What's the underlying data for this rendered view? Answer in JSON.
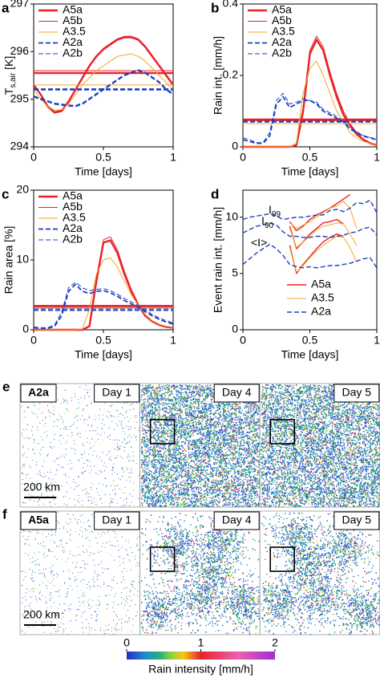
{
  "chart_data": [
    {
      "type": "line",
      "panel_label": "a",
      "xlabel": "Time [days]",
      "ylabel": {
        "text": "T",
        "subscript": "s,air",
        "suffix": " [K]"
      },
      "x": [
        0,
        0.05,
        0.1,
        0.15,
        0.2,
        0.25,
        0.3,
        0.35,
        0.4,
        0.45,
        0.5,
        0.55,
        0.6,
        0.65,
        0.7,
        0.75,
        0.8,
        0.85,
        0.9,
        0.95,
        1
      ],
      "xlim": [
        0,
        1
      ],
      "xticks": [
        0,
        0.5,
        1
      ],
      "ylim": [
        294,
        297
      ],
      "yticks": [
        294,
        295,
        296,
        297
      ],
      "legend": "upper left",
      "series": [
        {
          "name": "A5a",
          "color": "#e8232a",
          "width": 2.4,
          "style": "solid",
          "mean": 295.55,
          "values": [
            295.3,
            295.1,
            294.85,
            294.72,
            294.75,
            294.95,
            295.2,
            295.45,
            295.7,
            295.9,
            296.05,
            296.15,
            296.25,
            296.3,
            296.3,
            296.25,
            296.1,
            295.9,
            295.7,
            295.5,
            295.3
          ]
        },
        {
          "name": "A5b",
          "color": "#e8232a",
          "width": 1,
          "style": "solid",
          "mean": 295.6,
          "values": [
            295.32,
            295.12,
            294.87,
            294.74,
            294.77,
            294.97,
            295.22,
            295.47,
            295.72,
            295.92,
            296.07,
            296.17,
            296.27,
            296.32,
            296.32,
            296.27,
            296.12,
            295.92,
            295.72,
            295.52,
            295.32
          ]
        },
        {
          "name": "A3.5",
          "color": "#f5a623",
          "width": 1,
          "style": "solid",
          "mean": 295.3,
          "values": [
            295.2,
            295.0,
            294.85,
            294.77,
            294.78,
            294.9,
            295.1,
            295.3,
            295.45,
            295.6,
            295.7,
            295.8,
            295.9,
            295.93,
            295.95,
            295.9,
            295.8,
            295.65,
            295.5,
            295.35,
            295.2
          ]
        },
        {
          "name": "A2a",
          "color": "#1f3fbf",
          "width": 1.8,
          "style": "dashed",
          "mean": 295.2,
          "values": [
            295.05,
            295.0,
            294.95,
            294.9,
            294.88,
            294.86,
            294.85,
            294.9,
            295.0,
            295.1,
            295.2,
            295.3,
            295.4,
            295.5,
            295.55,
            295.6,
            295.55,
            295.45,
            295.35,
            295.2,
            295.1
          ]
        },
        {
          "name": "A2b",
          "color": "#1f3fbf",
          "width": 1,
          "style": "dashed",
          "mean": 295.22,
          "values": [
            295.07,
            295.02,
            294.97,
            294.92,
            294.9,
            294.88,
            294.87,
            294.92,
            295.02,
            295.12,
            295.22,
            295.32,
            295.42,
            295.52,
            295.57,
            295.62,
            295.57,
            295.47,
            295.37,
            295.22,
            295.12
          ]
        }
      ]
    },
    {
      "type": "line",
      "panel_label": "b",
      "xlabel": "Time [days]",
      "ylabel": "Rain int. [mm/h]",
      "x": [
        0,
        0.05,
        0.1,
        0.15,
        0.2,
        0.25,
        0.3,
        0.35,
        0.4,
        0.45,
        0.5,
        0.55,
        0.6,
        0.65,
        0.7,
        0.75,
        0.8,
        0.85,
        0.9,
        0.95,
        1
      ],
      "xlim": [
        0,
        1
      ],
      "xticks": [
        0,
        0.5,
        1
      ],
      "ylim": [
        0,
        0.4
      ],
      "yticks": [
        0,
        0.2,
        0.4
      ],
      "legend": "upper left",
      "series": [
        {
          "name": "A5a",
          "color": "#e8232a",
          "width": 2.4,
          "style": "solid",
          "mean": 0.075,
          "values": [
            0,
            0,
            0,
            0,
            0,
            0,
            0,
            0,
            0.005,
            0.1,
            0.26,
            0.3,
            0.27,
            0.2,
            0.14,
            0.09,
            0.06,
            0.035,
            0.02,
            0.01,
            0.005
          ]
        },
        {
          "name": "A5b",
          "color": "#e8232a",
          "width": 1,
          "style": "solid",
          "mean": 0.078,
          "values": [
            0,
            0,
            0,
            0,
            0,
            0,
            0,
            0,
            0.006,
            0.11,
            0.27,
            0.31,
            0.28,
            0.21,
            0.15,
            0.1,
            0.065,
            0.04,
            0.022,
            0.012,
            0.006
          ]
        },
        {
          "name": "A3.5",
          "color": "#f5a623",
          "width": 1,
          "style": "solid",
          "mean": 0.065,
          "values": [
            0,
            0,
            0,
            0,
            0,
            0,
            0,
            0,
            0.01,
            0.15,
            0.22,
            0.24,
            0.2,
            0.15,
            0.1,
            0.07,
            0.04,
            0.025,
            0.015,
            0.01,
            0.005
          ]
        },
        {
          "name": "A2a",
          "color": "#1f3fbf",
          "width": 1.8,
          "style": "dashed",
          "mean": 0.07,
          "values": [
            0.02,
            0.015,
            0.01,
            0.01,
            0.03,
            0.12,
            0.14,
            0.11,
            0.12,
            0.13,
            0.13,
            0.12,
            0.1,
            0.09,
            0.08,
            0.07,
            0.05,
            0.04,
            0.03,
            0.025,
            0.02
          ]
        },
        {
          "name": "A2b",
          "color": "#1f3fbf",
          "width": 1,
          "style": "dashed",
          "mean": 0.072,
          "values": [
            0.025,
            0.02,
            0.012,
            0.012,
            0.04,
            0.13,
            0.15,
            0.12,
            0.125,
            0.135,
            0.13,
            0.125,
            0.105,
            0.095,
            0.085,
            0.072,
            0.055,
            0.042,
            0.032,
            0.026,
            0.022
          ]
        }
      ]
    },
    {
      "type": "line",
      "panel_label": "c",
      "xlabel": "Time [days]",
      "ylabel": "Rain area [%]",
      "x": [
        0,
        0.05,
        0.1,
        0.15,
        0.2,
        0.25,
        0.3,
        0.35,
        0.4,
        0.45,
        0.5,
        0.55,
        0.6,
        0.65,
        0.7,
        0.75,
        0.8,
        0.85,
        0.9,
        0.95,
        1
      ],
      "xlim": [
        0,
        1
      ],
      "xticks": [
        0,
        0.5,
        1
      ],
      "ylim": [
        0,
        20
      ],
      "yticks": [
        0,
        10,
        20
      ],
      "legend": "upper left",
      "series": [
        {
          "name": "A5a",
          "color": "#e8232a",
          "width": 2.4,
          "style": "solid",
          "mean": 3.3,
          "values": [
            0,
            0,
            0,
            0,
            0,
            0,
            0,
            0,
            0.5,
            7,
            12.5,
            12.8,
            11,
            8,
            5.5,
            3.5,
            2,
            1.2,
            0.7,
            0.4,
            0.3
          ]
        },
        {
          "name": "A5b",
          "color": "#e8232a",
          "width": 1,
          "style": "solid",
          "mean": 3.5,
          "values": [
            0,
            0,
            0,
            0,
            0,
            0,
            0,
            0,
            0.6,
            7.4,
            12.9,
            13.3,
            11.5,
            8.4,
            5.8,
            3.7,
            2.2,
            1.3,
            0.8,
            0.45,
            0.3
          ]
        },
        {
          "name": "A3.5",
          "color": "#f5a623",
          "width": 1,
          "style": "solid",
          "mean": 3.0,
          "values": [
            0,
            0,
            0,
            0,
            0,
            0,
            0,
            0.1,
            3,
            8,
            10,
            10.3,
            9,
            7,
            5,
            3.5,
            2.2,
            1.3,
            0.8,
            0.5,
            0.3
          ]
        },
        {
          "name": "A2a",
          "color": "#1f3fbf",
          "width": 1.8,
          "style": "dashed",
          "mean": 2.8,
          "values": [
            0.3,
            0.2,
            0.2,
            0.5,
            2,
            5.5,
            6.5,
            5.5,
            5.2,
            5.5,
            5.6,
            5.3,
            4.8,
            4.2,
            3.7,
            3.2,
            2.6,
            2,
            1.5,
            1.1,
            0.8
          ]
        },
        {
          "name": "A2b",
          "color": "#1f3fbf",
          "width": 1,
          "style": "dashed",
          "mean": 3.0,
          "values": [
            0.4,
            0.3,
            0.3,
            0.7,
            2.5,
            6,
            6.8,
            6,
            5.6,
            5.8,
            5.9,
            5.6,
            5.1,
            4.5,
            4,
            3.4,
            2.8,
            2.2,
            1.7,
            1.3,
            1
          ]
        }
      ]
    },
    {
      "type": "line",
      "panel_label": "d",
      "xlabel": "Time [days]",
      "ylabel": "Event rain int. [mm/h]",
      "x": [
        0,
        0.05,
        0.1,
        0.15,
        0.2,
        0.25,
        0.3,
        0.35,
        0.4,
        0.45,
        0.5,
        0.55,
        0.6,
        0.65,
        0.7,
        0.75,
        0.8,
        0.85,
        0.9,
        0.95,
        1
      ],
      "xlim": [
        0,
        1
      ],
      "xticks": [
        0,
        0.5,
        1
      ],
      "ylim": [
        0,
        12.4
      ],
      "yticks": [
        0,
        5,
        10
      ],
      "legend": "lower center",
      "annotations": [
        {
          "text": "I",
          "subscript": "99"
        },
        {
          "text": "I",
          "subscript": "90"
        },
        {
          "text": "<I>"
        }
      ],
      "series": [
        {
          "name": "A5a",
          "color": "#e8232a",
          "width": 1.4,
          "style": "solid",
          "values": [
            null,
            null,
            null,
            null,
            null,
            null,
            null,
            7.5,
            5.0,
            5.8,
            6.5,
            7.2,
            7.8,
            8.2,
            8.5,
            8.3,
            null,
            null,
            null,
            null,
            null
          ],
          "p90": [
            null,
            null,
            null,
            null,
            null,
            null,
            null,
            9.2,
            7.2,
            7.8,
            8.5,
            9.0,
            9.5,
            9.6,
            9.8,
            9.4,
            null,
            null,
            null,
            null,
            null
          ],
          "p99": [
            null,
            null,
            null,
            null,
            null,
            null,
            null,
            9.6,
            8.8,
            9.2,
            9.8,
            10.2,
            10.5,
            10.8,
            11.2,
            11.6,
            12.0,
            null,
            null,
            null,
            null
          ]
        },
        {
          "name": "A3.5",
          "color": "#f5a623",
          "width": 1,
          "style": "solid",
          "values": [
            null,
            null,
            null,
            null,
            null,
            null,
            null,
            7.3,
            5.1,
            5.7,
            6.4,
            7.0,
            7.5,
            7.9,
            8.3,
            8.2,
            7.3,
            6.0,
            null,
            null,
            null
          ],
          "p90": [
            null,
            null,
            null,
            null,
            null,
            null,
            null,
            9.0,
            7.3,
            7.8,
            8.3,
            8.9,
            9.2,
            9.3,
            9.5,
            9.4,
            8.5,
            7.5,
            null,
            null,
            null
          ],
          "p99": [
            null,
            null,
            null,
            null,
            null,
            null,
            null,
            9.5,
            9.0,
            9.3,
            9.6,
            10.0,
            10.4,
            10.8,
            11.0,
            11.4,
            10.8,
            9.0,
            null,
            null,
            null
          ]
        },
        {
          "name": "A2a",
          "color": "#1f3fbf",
          "width": 1.4,
          "style": "dashed",
          "values": [
            5.8,
            6.3,
            6.8,
            7.2,
            7.6,
            7.2,
            6.6,
            5.8,
            5.6,
            5.5,
            5.6,
            5.5,
            5.6,
            5.7,
            5.7,
            5.8,
            5.9,
            6.1,
            6.3,
            6.4,
            5.5
          ],
          "p90": [
            8.6,
            8.9,
            9.2,
            9.3,
            9.5,
            9.3,
            8.7,
            8.3,
            8.3,
            8.2,
            8.2,
            8.3,
            8.3,
            8.2,
            8.3,
            8.4,
            8.6,
            8.7,
            9.0,
            9.1,
            8.4
          ],
          "p99": [
            9.8,
            10.0,
            10.1,
            10.2,
            10.3,
            10.1,
            9.8,
            9.9,
            10.0,
            10.0,
            10.1,
            10.2,
            10.2,
            10.6,
            10.7,
            10.5,
            10.8,
            11.3,
            11.2,
            11.5,
            10.4
          ]
        }
      ]
    }
  ],
  "maps": {
    "rows": [
      {
        "panel_label": "e",
        "run": "A2a",
        "days": [
          "Day 1",
          "Day 4",
          "Day 5"
        ],
        "scale": "200 km"
      },
      {
        "panel_label": "f",
        "run": "A5a",
        "days": [
          "Day 1",
          "Day 4",
          "Day 5"
        ],
        "scale": "200 km"
      }
    ]
  },
  "colorbar": {
    "label": "Rain intensity [mm/h]",
    "lim": [
      0,
      2
    ],
    "ticks": [
      0,
      1,
      2
    ]
  }
}
